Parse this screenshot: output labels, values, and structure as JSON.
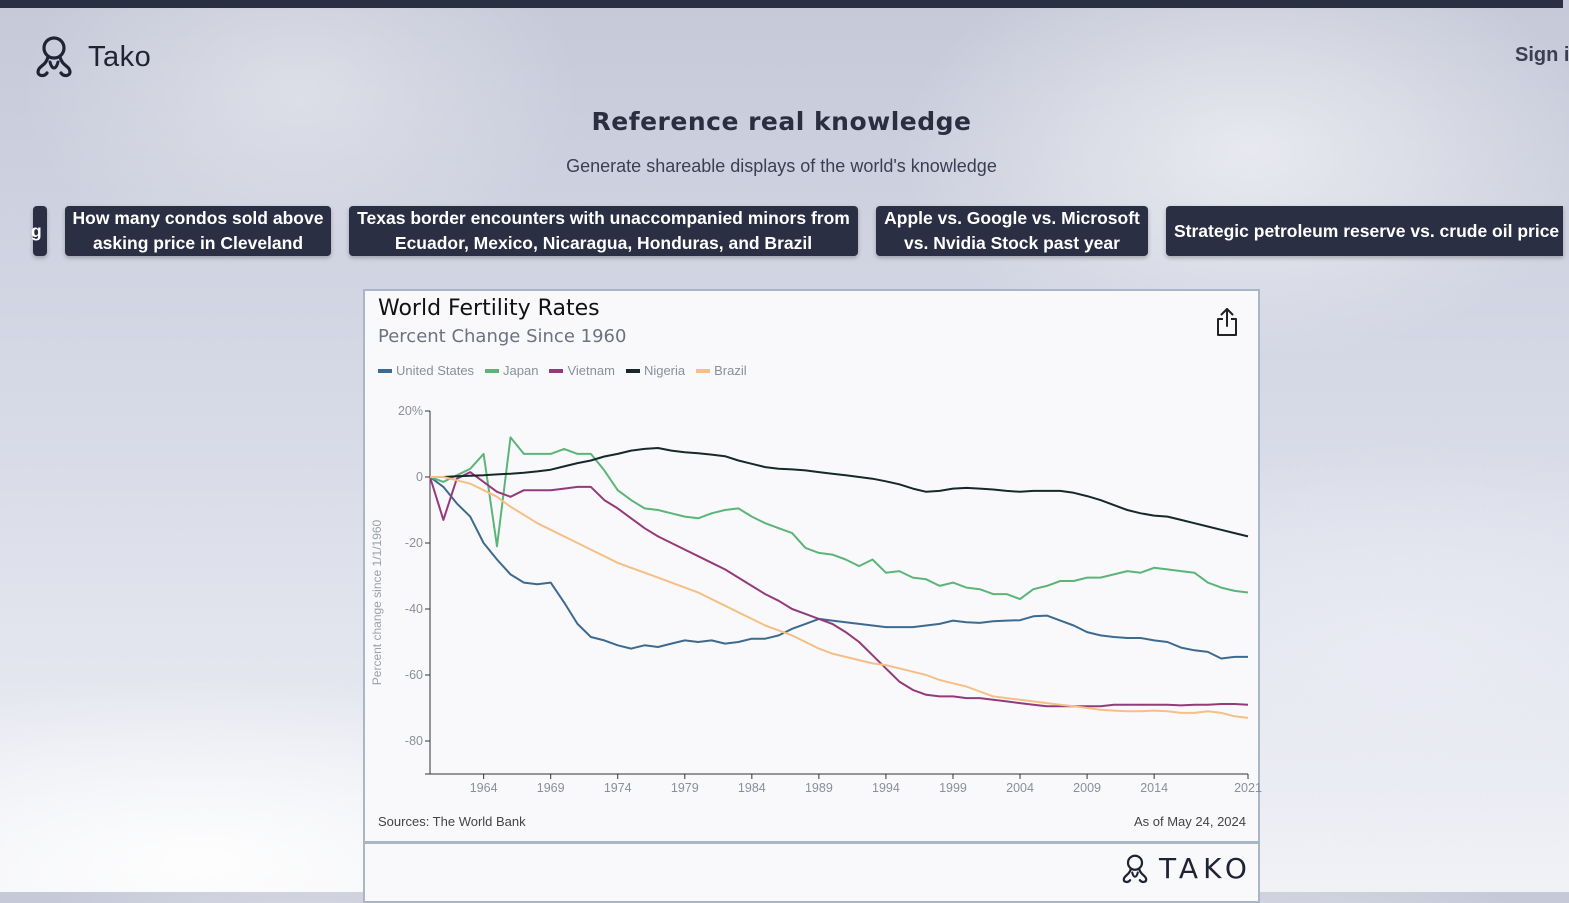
{
  "app": {
    "name": "Tako",
    "signin_label": "Sign i"
  },
  "hero": {
    "title": "Reference real knowledge",
    "subtitle": "Generate shareable displays of the world's knowledge"
  },
  "chips": [
    {
      "label": "g"
    },
    {
      "label": "How many condos sold above\nasking price in Cleveland"
    },
    {
      "label": "Texas border encounters with unaccompanied minors from\nEcuador, Mexico, Nicaragua, Honduras, and Brazil"
    },
    {
      "label": "Apple vs. Google vs. Microsoft\nvs. Nvidia Stock past year"
    },
    {
      "label": "Strategic petroleum reserve vs. crude oil price"
    }
  ],
  "card": {
    "sources": "Sources: The World Bank",
    "as_of": "As of May 24, 2024",
    "footer_brand": "TAKO"
  },
  "chart_data": {
    "type": "line",
    "title": "World Fertility Rates",
    "subtitle": "Percent Change Since 1960",
    "ylabel": "Percent change since 1/1/1960",
    "xlabel": "",
    "ylim": [
      -90,
      20
    ],
    "xlim": [
      1960,
      2021
    ],
    "yticks": [
      20,
      0,
      -20,
      -40,
      -60,
      -80
    ],
    "ytick_labels": [
      "20%",
      "0",
      "-20",
      "-40",
      "-60",
      "-80"
    ],
    "xticks": [
      1964,
      1969,
      1974,
      1979,
      1984,
      1989,
      1994,
      1999,
      2004,
      2009,
      2014,
      2021
    ],
    "legend_position": "top-left",
    "grid": false,
    "x": [
      1960,
      1961,
      1962,
      1963,
      1964,
      1965,
      1966,
      1967,
      1968,
      1969,
      1970,
      1971,
      1972,
      1973,
      1974,
      1975,
      1976,
      1977,
      1978,
      1979,
      1980,
      1981,
      1982,
      1983,
      1984,
      1985,
      1986,
      1987,
      1988,
      1989,
      1990,
      1991,
      1992,
      1993,
      1994,
      1995,
      1996,
      1997,
      1998,
      1999,
      2000,
      2001,
      2002,
      2003,
      2004,
      2005,
      2006,
      2007,
      2008,
      2009,
      2010,
      2011,
      2012,
      2013,
      2014,
      2015,
      2016,
      2017,
      2018,
      2019,
      2020,
      2021
    ],
    "series": [
      {
        "name": "United States",
        "color": "#3d6a8f",
        "values": [
          0,
          -3,
          -8,
          -12,
          -20,
          -25,
          -29.5,
          -32,
          -32.5,
          -32,
          -38,
          -44.5,
          -48.5,
          -49.5,
          -51,
          -52,
          -51,
          -51.5,
          -50.5,
          -49.5,
          -50,
          -49.5,
          -50.5,
          -50,
          -49,
          -49,
          -48,
          -46,
          -44.5,
          -43,
          -43.5,
          -44,
          -44.5,
          -45,
          -45.5,
          -45.5,
          -45.5,
          -45,
          -44.5,
          -43.5,
          -44,
          -44.2,
          -43.7,
          -43.5,
          -43.4,
          -42.2,
          -42,
          -43.5,
          -45,
          -47,
          -48,
          -48.5,
          -48.8,
          -48.8,
          -49.5,
          -50,
          -51.7,
          -52.5,
          -53,
          -55,
          -54.5,
          -54.5
        ]
      },
      {
        "name": "Japan",
        "color": "#5cb578",
        "values": [
          0,
          -1.5,
          0.5,
          2.5,
          7,
          -21,
          12,
          7,
          7,
          7,
          8.5,
          7,
          7,
          2,
          -4,
          -7,
          -9.5,
          -10,
          -11,
          -12,
          -12.5,
          -11,
          -10,
          -9.5,
          -12,
          -14,
          -15.5,
          -17,
          -21.5,
          -23,
          -23.5,
          -25,
          -27,
          -25,
          -29,
          -28.5,
          -30.5,
          -31,
          -33,
          -32,
          -33.5,
          -34,
          -35.5,
          -35.5,
          -37,
          -34,
          -33,
          -31.5,
          -31.5,
          -30.5,
          -30.5,
          -29.5,
          -28.5,
          -29,
          -27.5,
          -28,
          -28.5,
          -29,
          -32,
          -33.5,
          -34.5,
          -35
        ]
      },
      {
        "name": "Vietnam",
        "color": "#943a7a",
        "values": [
          0,
          -13,
          -0.5,
          1.5,
          -1.5,
          -4.5,
          -6,
          -4,
          -4,
          -4,
          -3.5,
          -3,
          -3,
          -7,
          -9.5,
          -12.5,
          -15.5,
          -18,
          -20,
          -22,
          -24,
          -26,
          -28,
          -30.5,
          -33,
          -35.5,
          -37.5,
          -40,
          -41.5,
          -43,
          -44.5,
          -47,
          -50,
          -54,
          -58,
          -62,
          -64.5,
          -66,
          -66.5,
          -66.5,
          -67,
          -67,
          -67.5,
          -68,
          -68.5,
          -69,
          -69.5,
          -69.5,
          -69.5,
          -69.5,
          -69.5,
          -69,
          -69,
          -69,
          -69,
          -69,
          -69.2,
          -69,
          -69,
          -68.8,
          -68.8,
          -69
        ]
      },
      {
        "name": "Nigeria",
        "color": "#17282a",
        "values": [
          0,
          0,
          0.2,
          0.4,
          0.5,
          0.8,
          1,
          1.3,
          1.7,
          2.2,
          3.2,
          4.2,
          5,
          6.2,
          7,
          8,
          8.5,
          8.8,
          8,
          7.5,
          7.2,
          6.8,
          6.3,
          5,
          4,
          3,
          2.5,
          2.3,
          2,
          1.5,
          1,
          0.5,
          0,
          -0.5,
          -1.3,
          -2.2,
          -3.5,
          -4.5,
          -4.2,
          -3.5,
          -3.3,
          -3.5,
          -3.8,
          -4.2,
          -4.5,
          -4.2,
          -4.2,
          -4.2,
          -4.8,
          -5.8,
          -7,
          -8.5,
          -10,
          -11,
          -11.7,
          -12,
          -13,
          -14,
          -15,
          -16,
          -17,
          -18
        ]
      },
      {
        "name": "Brazil",
        "color": "#f5bf86",
        "values": [
          0,
          0,
          -1,
          -2,
          -4,
          -6,
          -9,
          -11.5,
          -14,
          -16,
          -18,
          -20,
          -22,
          -24,
          -26,
          -27.5,
          -29,
          -30.5,
          -32,
          -33.5,
          -35,
          -37,
          -39,
          -41,
          -43,
          -45,
          -46.5,
          -48,
          -50,
          -52,
          -53.5,
          -54.5,
          -55.5,
          -56.5,
          -57,
          -58,
          -59,
          -60,
          -61.5,
          -62.5,
          -63.5,
          -65,
          -66.5,
          -67,
          -67.5,
          -68,
          -68.5,
          -69,
          -69.5,
          -70,
          -70.5,
          -70.8,
          -71,
          -71,
          -70.8,
          -71,
          -71.5,
          -71.5,
          -71,
          -71.5,
          -72.5,
          -73
        ]
      }
    ]
  }
}
